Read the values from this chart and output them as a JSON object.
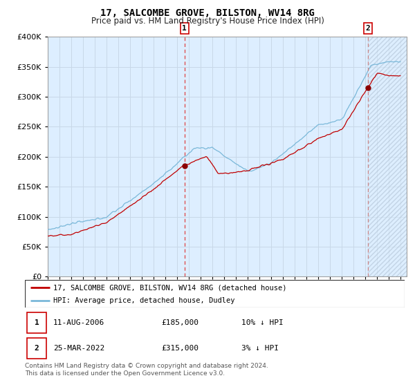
{
  "title": "17, SALCOMBE GROVE, BILSTON, WV14 8RG",
  "subtitle": "Price paid vs. HM Land Registry's House Price Index (HPI)",
  "legend_line1": "17, SALCOMBE GROVE, BILSTON, WV14 8RG (detached house)",
  "legend_line2": "HPI: Average price, detached house, Dudley",
  "sale1_date": "11-AUG-2006",
  "sale1_price": "£185,000",
  "sale1_hpi": "10% ↓ HPI",
  "sale2_date": "25-MAR-2022",
  "sale2_price": "£315,000",
  "sale2_hpi": "3% ↓ HPI",
  "footer": "Contains HM Land Registry data © Crown copyright and database right 2024.\nThis data is licensed under the Open Government Licence v3.0.",
  "hpi_color": "#7ab8d9",
  "price_color": "#c00000",
  "marker_color": "#8b0000",
  "vline1_color": "#e06060",
  "vline2_color": "#c8a0a0",
  "bg_color": "#ddeeff",
  "grid_color": "#c8d8e8",
  "annotation_box_color": "#cc0000",
  "ylim": [
    0,
    400000
  ],
  "xmin": 1995,
  "xmax": 2025.5,
  "sale1_year": 2006.62,
  "sale1_price_val": 185000,
  "sale2_year": 2022.21,
  "sale2_price_val": 315000
}
